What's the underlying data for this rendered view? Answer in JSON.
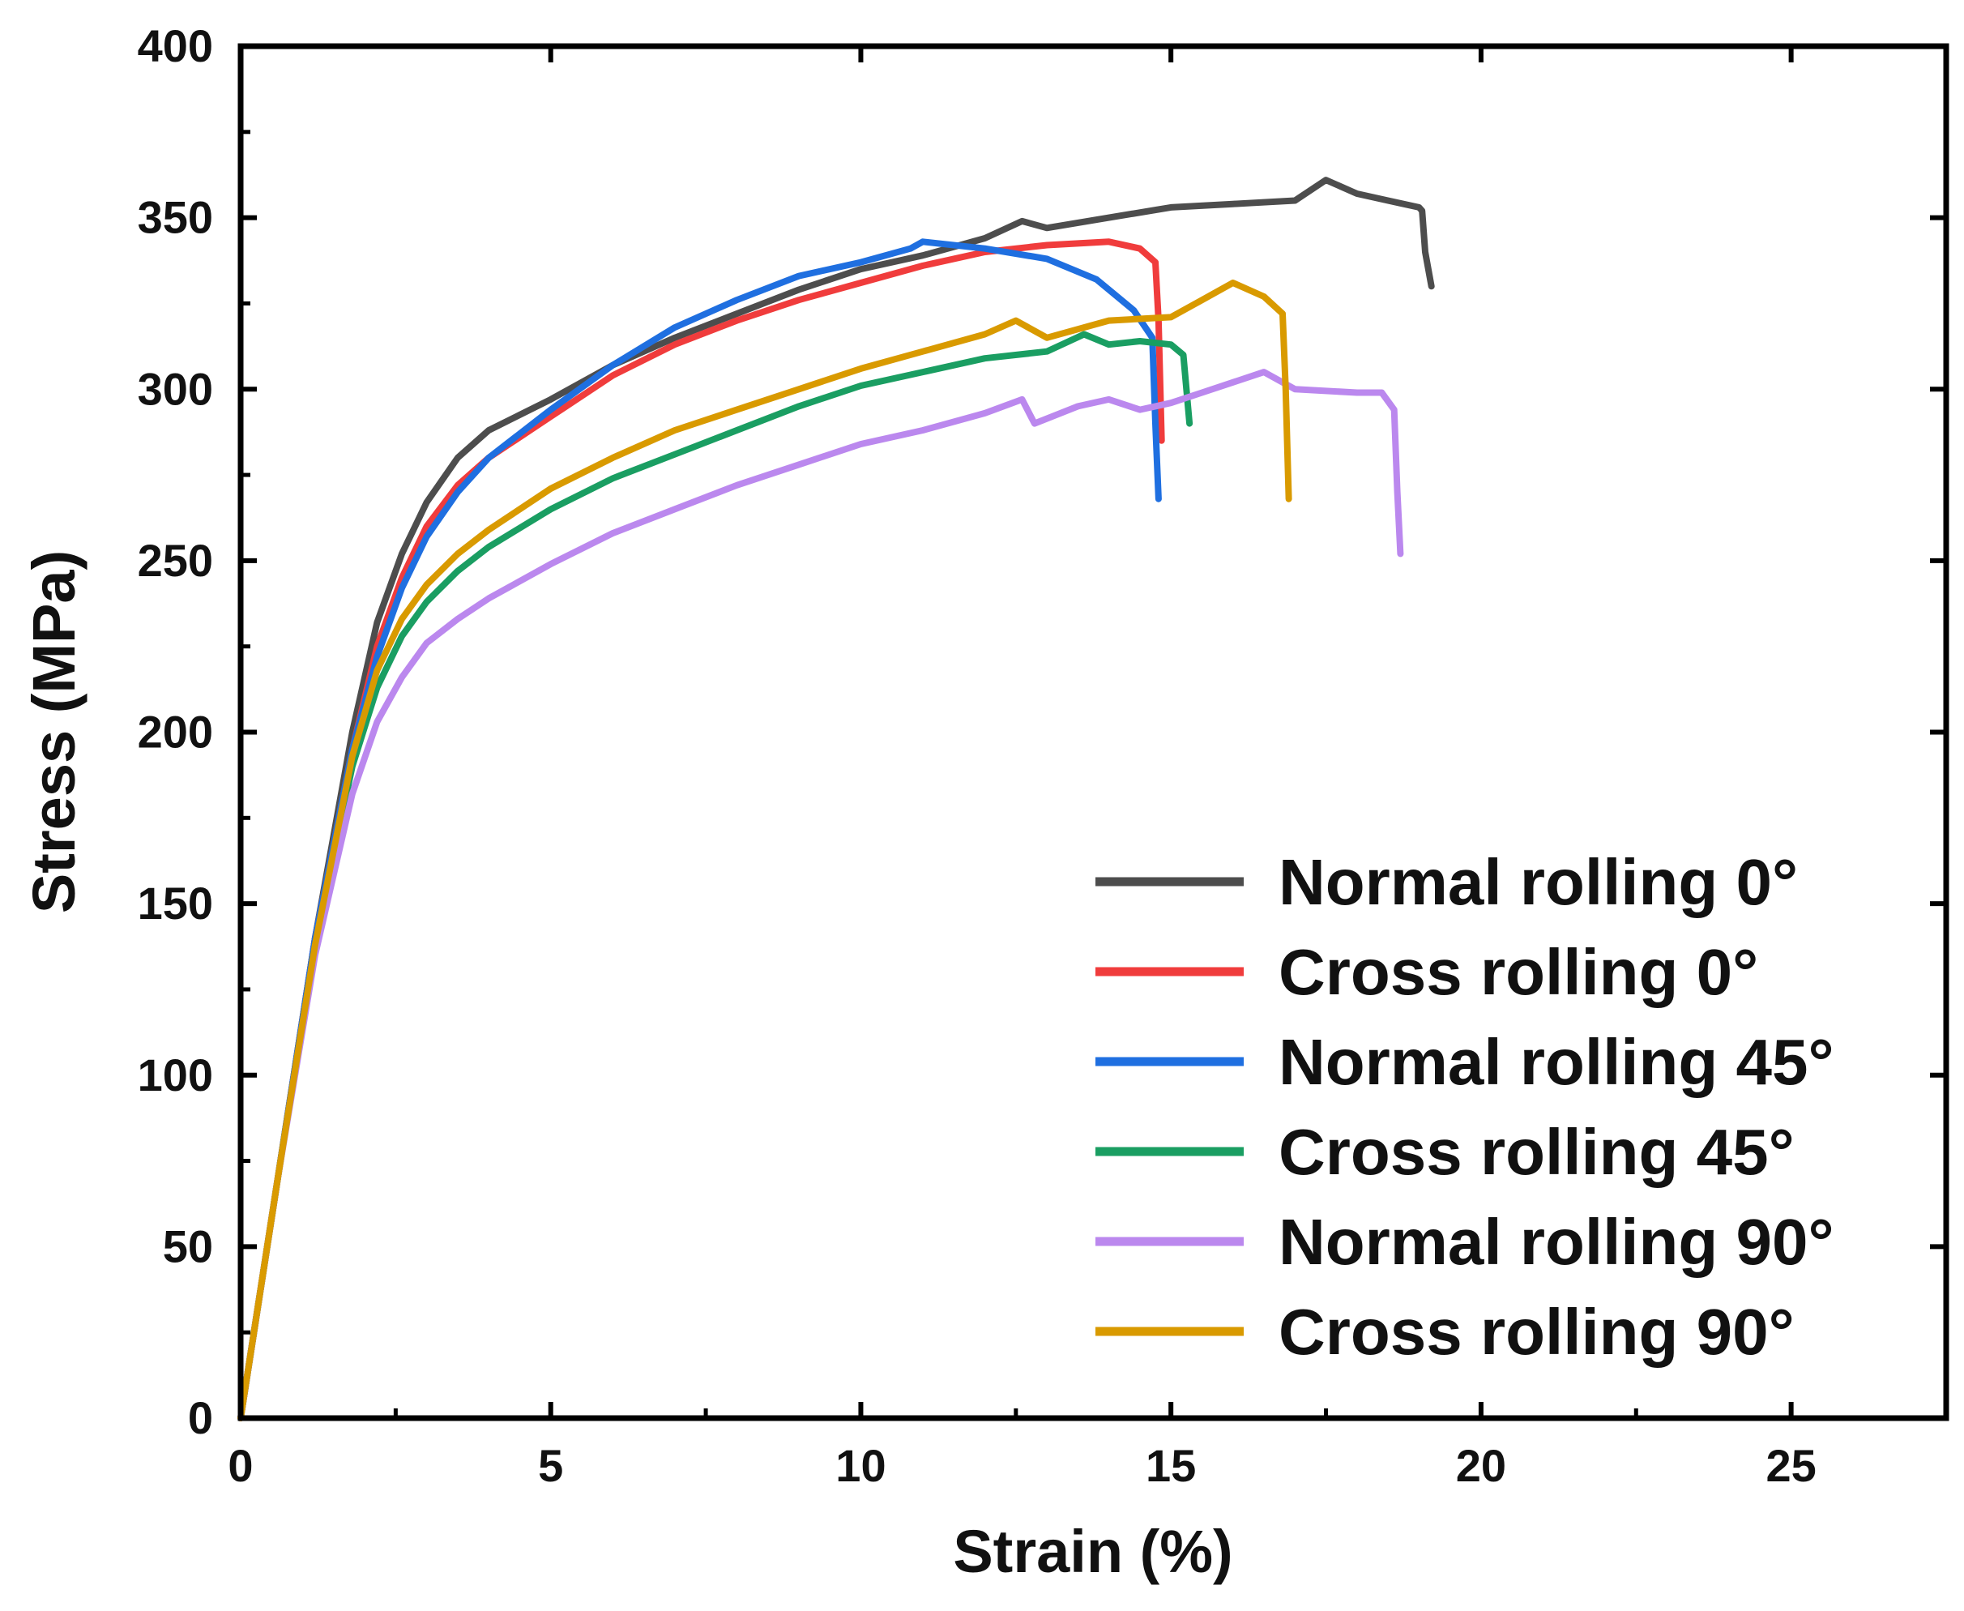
{
  "chart_data": {
    "type": "line",
    "title": "",
    "xlabel": "Strain (%)",
    "ylabel": "Stress (MPa)",
    "xlim": [
      0,
      27.5
    ],
    "ylim": [
      0,
      400
    ],
    "xticks": [
      0,
      5,
      10,
      15,
      20,
      25
    ],
    "yticks": [
      0,
      50,
      100,
      150,
      200,
      250,
      300,
      350,
      400
    ],
    "xtick_labels": [
      "0",
      "5",
      "10",
      "15",
      "20",
      "25"
    ],
    "ytick_labels": [
      "0",
      "50",
      "100",
      "150",
      "200",
      "250",
      "300",
      "350",
      "400"
    ],
    "grid": false,
    "legend_position": "lower-right",
    "series": [
      {
        "name": "Normal rolling 0°",
        "color": "#4d4d4d",
        "x": [
          0,
          0.6,
          1.2,
          1.8,
          2.2,
          2.6,
          3.0,
          3.5,
          4.0,
          5.0,
          6.0,
          7.0,
          8.0,
          9.0,
          10.0,
          11.0,
          12.0,
          12.6,
          13.0,
          14.0,
          15.0,
          16.0,
          17.0,
          17.5,
          18.0,
          18.5,
          19.0,
          19.05,
          19.1,
          19.2
        ],
        "y": [
          0,
          70,
          140,
          200,
          232,
          252,
          267,
          280,
          288,
          297,
          307,
          315,
          322,
          329,
          335,
          339,
          344,
          349,
          347,
          350,
          353,
          354,
          355,
          361,
          357,
          355,
          353,
          352,
          340,
          330
        ]
      },
      {
        "name": "Cross rolling 0°",
        "color": "#f03c3c",
        "x": [
          0,
          0.6,
          1.2,
          1.8,
          2.2,
          2.6,
          3.0,
          3.5,
          4.0,
          5.0,
          6.0,
          7.0,
          8.0,
          9.0,
          10.0,
          11.0,
          12.0,
          13.0,
          14.0,
          14.5,
          14.75,
          14.8,
          14.85
        ],
        "y": [
          0,
          70,
          140,
          195,
          225,
          245,
          260,
          272,
          280,
          292,
          304,
          313,
          320,
          326,
          331,
          336,
          340,
          342,
          343,
          341,
          337,
          320,
          285
        ]
      },
      {
        "name": "Normal rolling 45°",
        "color": "#1f6fe0",
        "x": [
          0,
          0.6,
          1.2,
          1.8,
          2.2,
          2.6,
          3.0,
          3.5,
          4.0,
          5.0,
          6.0,
          7.0,
          8.0,
          9.0,
          10.0,
          10.8,
          11.0,
          12.0,
          13.0,
          13.8,
          14.4,
          14.7,
          14.75,
          14.8
        ],
        "y": [
          0,
          70,
          140,
          195,
          222,
          242,
          257,
          270,
          280,
          294,
          307,
          318,
          326,
          333,
          337,
          341,
          343,
          341,
          338,
          332,
          323,
          315,
          290,
          268
        ]
      },
      {
        "name": "Cross rolling 45°",
        "color": "#1a9e62",
        "x": [
          0,
          0.6,
          1.2,
          1.8,
          2.2,
          2.6,
          3.0,
          3.5,
          4.0,
          5.0,
          6.0,
          7.0,
          8.0,
          9.0,
          10.0,
          11.0,
          12.0,
          13.0,
          13.6,
          14.0,
          14.5,
          15.0,
          15.2,
          15.25,
          15.3
        ],
        "y": [
          0,
          70,
          138,
          190,
          213,
          228,
          238,
          247,
          254,
          265,
          274,
          281,
          288,
          295,
          301,
          305,
          309,
          311,
          316,
          313,
          314,
          313,
          310,
          300,
          290
        ]
      },
      {
        "name": "Normal rolling 90°",
        "color": "#bb88ee",
        "x": [
          0,
          0.6,
          1.2,
          1.8,
          2.2,
          2.6,
          3.0,
          3.5,
          4.0,
          5.0,
          6.0,
          7.0,
          8.0,
          9.0,
          10.0,
          11.0,
          12.0,
          12.6,
          12.8,
          13.5,
          14.0,
          14.5,
          15.0,
          15.5,
          16.0,
          16.5,
          17.0,
          18.0,
          18.4,
          18.6,
          18.65,
          18.7
        ],
        "y": [
          0,
          70,
          135,
          182,
          203,
          216,
          226,
          233,
          239,
          249,
          258,
          265,
          272,
          278,
          284,
          288,
          293,
          297,
          290,
          295,
          297,
          294,
          296,
          299,
          302,
          305,
          300,
          299,
          299,
          294,
          270,
          252
        ]
      },
      {
        "name": "Cross rolling 90°",
        "color": "#d99a00",
        "x": [
          0,
          0.6,
          1.2,
          1.8,
          2.2,
          2.6,
          3.0,
          3.5,
          4.0,
          5.0,
          6.0,
          7.0,
          8.0,
          9.0,
          10.0,
          11.0,
          12.0,
          12.5,
          13.0,
          14.0,
          15.0,
          15.5,
          16.0,
          16.5,
          16.8,
          16.85,
          16.9
        ],
        "y": [
          0,
          70,
          138,
          193,
          218,
          233,
          243,
          252,
          259,
          271,
          280,
          288,
          294,
          300,
          306,
          311,
          316,
          320,
          315,
          320,
          321,
          326,
          331,
          327,
          322,
          300,
          268
        ]
      }
    ]
  }
}
